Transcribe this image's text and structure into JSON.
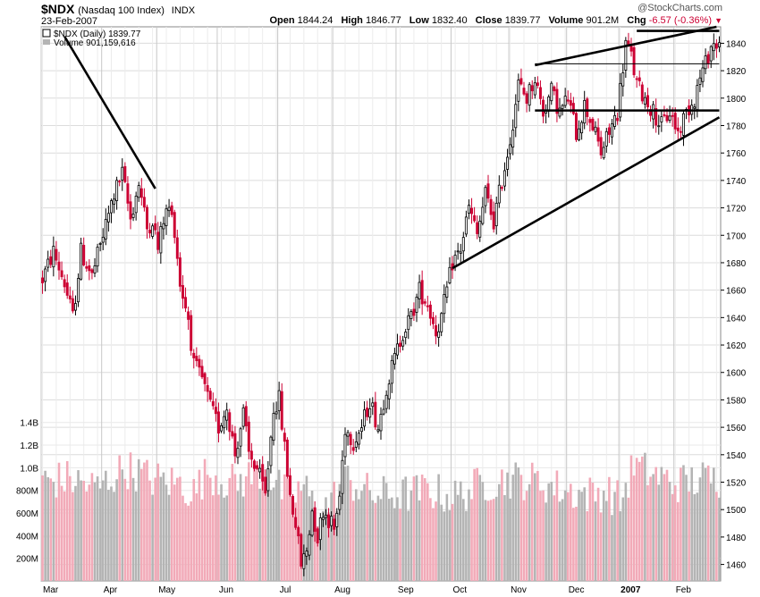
{
  "header": {
    "symbol": "$NDX",
    "name": "(Nasdaq 100 Index)",
    "exchange": "INDX",
    "date": "23-Feb-2007",
    "brand": "@StockCharts.com",
    "ohlc": [
      {
        "label": "Open",
        "value": "1844.24"
      },
      {
        "label": "High",
        "value": "1846.77"
      },
      {
        "label": "Low",
        "value": "1832.40"
      },
      {
        "label": "Close",
        "value": "1839.77"
      },
      {
        "label": "Volume",
        "value": "901.2M"
      }
    ],
    "chg_label": "Chg",
    "chg_value": "-6.57 (-0.36%)"
  },
  "legend": {
    "price": "$NDX (Daily) 1839.77",
    "volume": "Volume 901,159,616"
  },
  "colors": {
    "up": "#000000",
    "down": "#cc0033",
    "vol_up": "#b4b4b4",
    "vol_down": "#f2aab8",
    "grid": "#dcdcdc"
  },
  "chart_data": {
    "type": "candlestick",
    "ylim": [
      1448,
      1852
    ],
    "yticks": [
      1460,
      1480,
      1500,
      1520,
      1540,
      1560,
      1580,
      1600,
      1620,
      1640,
      1660,
      1680,
      1700,
      1720,
      1740,
      1760,
      1780,
      1800,
      1820,
      1840
    ],
    "volume_ticks": [
      {
        "label": "200M",
        "value": 200
      },
      {
        "label": "400M",
        "value": 400
      },
      {
        "label": "600M",
        "value": 600
      },
      {
        "label": "800M",
        "value": 800
      },
      {
        "label": "1.0B",
        "value": 1000
      },
      {
        "label": "1.2B",
        "value": 1200
      },
      {
        "label": "1.4B",
        "value": 1400
      }
    ],
    "volume_max": 1540,
    "months": [
      {
        "label": "Mar",
        "start": 0,
        "bold": false
      },
      {
        "label": "Apr",
        "start": 22,
        "bold": false
      },
      {
        "label": "May",
        "start": 42,
        "bold": false
      },
      {
        "label": "Jun",
        "start": 64,
        "bold": false
      },
      {
        "label": "Jul",
        "start": 86,
        "bold": false
      },
      {
        "label": "Aug",
        "start": 106,
        "bold": false
      },
      {
        "label": "Sep",
        "start": 129,
        "bold": false
      },
      {
        "label": "Oct",
        "start": 149,
        "bold": false
      },
      {
        "label": "Nov",
        "start": 170,
        "bold": false
      },
      {
        "label": "Dec",
        "start": 191,
        "bold": false
      },
      {
        "label": "2007",
        "start": 210,
        "bold": true
      },
      {
        "label": "Feb",
        "start": 230,
        "bold": false
      }
    ],
    "anchors": [
      [
        0,
        1668
      ],
      [
        4,
        1688
      ],
      [
        8,
        1665
      ],
      [
        11,
        1640
      ],
      [
        14,
        1688
      ],
      [
        18,
        1670
      ],
      [
        22,
        1700
      ],
      [
        26,
        1730
      ],
      [
        29,
        1745
      ],
      [
        32,
        1712
      ],
      [
        35,
        1738
      ],
      [
        38,
        1705
      ],
      [
        40,
        1712
      ],
      [
        42,
        1690
      ],
      [
        44,
        1712
      ],
      [
        46,
        1720
      ],
      [
        48,
        1705
      ],
      [
        50,
        1665
      ],
      [
        53,
        1640
      ],
      [
        55,
        1605
      ],
      [
        58,
        1595
      ],
      [
        61,
        1575
      ],
      [
        64,
        1560
      ],
      [
        67,
        1575
      ],
      [
        70,
        1540
      ],
      [
        73,
        1570
      ],
      [
        75,
        1540
      ],
      [
        78,
        1530
      ],
      [
        81,
        1510
      ],
      [
        84,
        1575
      ],
      [
        86,
        1580
      ],
      [
        88,
        1545
      ],
      [
        90,
        1510
      ],
      [
        92,
        1490
      ],
      [
        94,
        1460
      ],
      [
        96,
        1470
      ],
      [
        98,
        1500
      ],
      [
        100,
        1480
      ],
      [
        102,
        1500
      ],
      [
        105,
        1490
      ],
      [
        106,
        1485
      ],
      [
        108,
        1510
      ],
      [
        110,
        1560
      ],
      [
        113,
        1550
      ],
      [
        116,
        1560
      ],
      [
        119,
        1580
      ],
      [
        122,
        1560
      ],
      [
        125,
        1590
      ],
      [
        128,
        1610
      ],
      [
        131,
        1630
      ],
      [
        134,
        1640
      ],
      [
        137,
        1660
      ],
      [
        140,
        1650
      ],
      [
        143,
        1630
      ],
      [
        145,
        1640
      ],
      [
        147,
        1660
      ],
      [
        149,
        1680
      ],
      [
        152,
        1690
      ],
      [
        155,
        1720
      ],
      [
        158,
        1700
      ],
      [
        161,
        1730
      ],
      [
        164,
        1710
      ],
      [
        167,
        1740
      ],
      [
        170,
        1770
      ],
      [
        173,
        1810
      ],
      [
        176,
        1800
      ],
      [
        179,
        1815
      ],
      [
        182,
        1790
      ],
      [
        185,
        1805
      ],
      [
        188,
        1790
      ],
      [
        191,
        1800
      ],
      [
        194,
        1775
      ],
      [
        197,
        1795
      ],
      [
        200,
        1780
      ],
      [
        203,
        1760
      ],
      [
        206,
        1775
      ],
      [
        209,
        1790
      ],
      [
        212,
        1840
      ],
      [
        214,
        1830
      ],
      [
        216,
        1810
      ],
      [
        219,
        1800
      ],
      [
        222,
        1790
      ],
      [
        225,
        1780
      ],
      [
        228,
        1790
      ],
      [
        231,
        1775
      ],
      [
        234,
        1790
      ],
      [
        237,
        1800
      ],
      [
        239,
        1815
      ],
      [
        241,
        1825
      ],
      [
        243,
        1838
      ],
      [
        245,
        1840
      ]
    ],
    "volume_anchors": [
      [
        0,
        880
      ],
      [
        10,
        900
      ],
      [
        20,
        820
      ],
      [
        30,
        1000
      ],
      [
        40,
        900
      ],
      [
        50,
        860
      ],
      [
        55,
        780
      ],
      [
        60,
        960
      ],
      [
        65,
        900
      ],
      [
        70,
        860
      ],
      [
        80,
        980
      ],
      [
        90,
        720
      ],
      [
        95,
        840
      ],
      [
        100,
        600
      ],
      [
        105,
        700
      ],
      [
        110,
        900
      ],
      [
        120,
        760
      ],
      [
        130,
        760
      ],
      [
        140,
        800
      ],
      [
        150,
        740
      ],
      [
        160,
        860
      ],
      [
        170,
        900
      ],
      [
        180,
        880
      ],
      [
        190,
        800
      ],
      [
        200,
        760
      ],
      [
        205,
        800
      ],
      [
        210,
        700
      ],
      [
        215,
        1020
      ],
      [
        220,
        960
      ],
      [
        230,
        860
      ],
      [
        240,
        900
      ],
      [
        245,
        900
      ]
    ],
    "trendlines": [
      {
        "x1": 8,
        "y1": 1845,
        "x2": 41,
        "y2": 1734
      },
      {
        "x1": 149,
        "y1": 1676,
        "x2": 246,
        "y2": 1786
      },
      {
        "x1": 179,
        "y1": 1824,
        "x2": 245,
        "y2": 1852
      },
      {
        "x1": 179,
        "y1": 1791,
        "x2": 246,
        "y2": 1791
      },
      {
        "x1": 216,
        "y1": 1849,
        "x2": 246,
        "y2": 1849
      }
    ],
    "thin_lines": [
      {
        "x1": 179,
        "y1": 1825,
        "x2": 246,
        "y2": 1825
      }
    ]
  }
}
